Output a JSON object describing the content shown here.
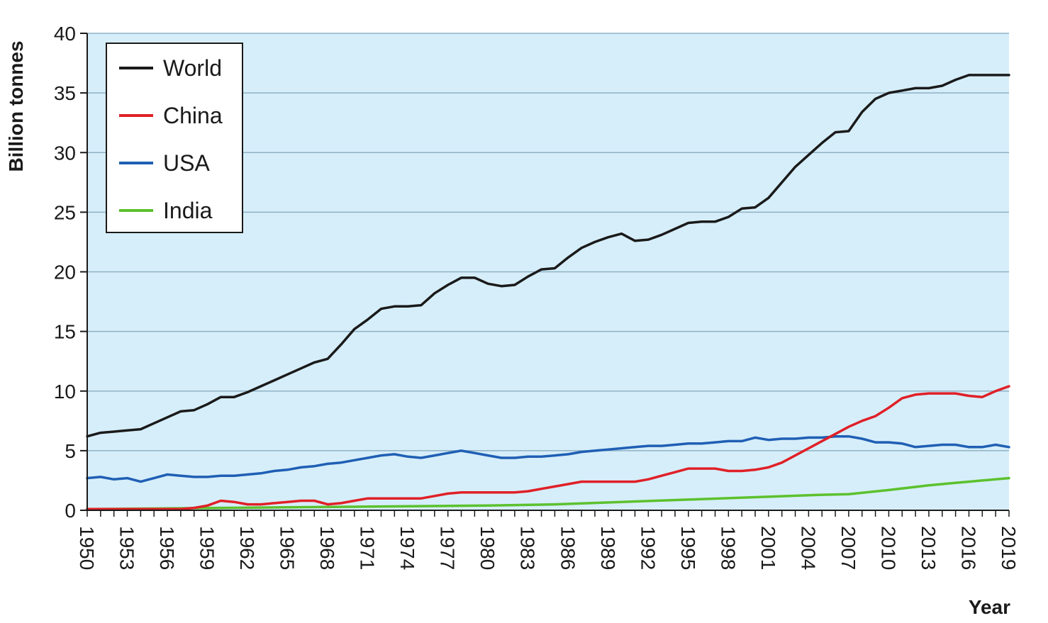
{
  "chart_data": {
    "type": "line",
    "title": "",
    "xlabel": "Year",
    "ylabel": "Billion tonnes",
    "xlim": [
      1950,
      2019
    ],
    "ylim": [
      0,
      40
    ],
    "yticks": [
      0,
      5,
      10,
      15,
      20,
      25,
      30,
      35,
      40
    ],
    "xtick_labels": [
      "1950",
      "1953",
      "1956",
      "1959",
      "1962",
      "1965",
      "1968",
      "1971",
      "1974",
      "1977",
      "1980",
      "1983",
      "1986",
      "1989",
      "1992",
      "1995",
      "1998",
      "2001",
      "2004",
      "2007",
      "2010",
      "2013",
      "2016",
      "2019"
    ],
    "grid": "horizontal",
    "legend_position": "top-left",
    "background_color": "#d6eefa",
    "series": [
      {
        "name": "World",
        "color": "#1a1a1a",
        "x": [
          1950,
          1951,
          1952,
          1953,
          1954,
          1955,
          1956,
          1957,
          1958,
          1959,
          1960,
          1961,
          1962,
          1963,
          1964,
          1965,
          1966,
          1967,
          1968,
          1969,
          1970,
          1971,
          1972,
          1973,
          1974,
          1975,
          1976,
          1977,
          1978,
          1979,
          1980,
          1981,
          1982,
          1983,
          1984,
          1985,
          1986,
          1987,
          1988,
          1989,
          1990,
          1991,
          1992,
          1993,
          1994,
          1995,
          1996,
          1997,
          1998,
          1999,
          2000,
          2001,
          2002,
          2003,
          2004,
          2005,
          2006,
          2007,
          2008,
          2009,
          2010,
          2011,
          2012,
          2013,
          2014,
          2015,
          2016,
          2017,
          2018,
          2019
        ],
        "values": [
          6.2,
          6.5,
          6.6,
          6.7,
          6.8,
          7.3,
          7.8,
          8.3,
          8.4,
          8.9,
          9.5,
          9.5,
          9.9,
          10.4,
          10.9,
          11.4,
          11.9,
          12.4,
          12.7,
          13.9,
          15.2,
          16.0,
          16.9,
          17.1,
          17.1,
          17.2,
          18.2,
          18.9,
          19.5,
          19.5,
          19.0,
          18.8,
          18.9,
          19.6,
          20.2,
          20.3,
          21.2,
          22.0,
          22.5,
          22.9,
          23.2,
          22.6,
          22.7,
          23.1,
          23.6,
          24.1,
          24.2,
          24.2,
          24.6,
          25.3,
          25.4,
          26.2,
          27.5,
          28.8,
          29.8,
          30.8,
          31.7,
          31.8,
          33.4,
          34.5,
          35.0,
          35.2,
          35.4,
          35.4,
          35.6,
          36.1,
          36.5,
          36.5,
          36.5,
          36.5
        ]
      },
      {
        "name": "China",
        "color": "#e02027",
        "x": [
          1950,
          1951,
          1952,
          1953,
          1954,
          1955,
          1956,
          1957,
          1958,
          1959,
          1960,
          1961,
          1962,
          1963,
          1964,
          1965,
          1966,
          1967,
          1968,
          1969,
          1970,
          1971,
          1972,
          1973,
          1974,
          1975,
          1976,
          1977,
          1978,
          1979,
          1980,
          1981,
          1982,
          1983,
          1984,
          1985,
          1986,
          1987,
          1988,
          1989,
          1990,
          1991,
          1992,
          1993,
          1994,
          1995,
          1996,
          1997,
          1998,
          1999,
          2000,
          2001,
          2002,
          2003,
          2004,
          2005,
          2006,
          2007,
          2008,
          2009,
          2010,
          2011,
          2012,
          2013,
          2014,
          2015,
          2016,
          2017,
          2018,
          2019
        ],
        "values": [
          0.1,
          0.1,
          0.1,
          0.1,
          0.1,
          0.1,
          0.1,
          0.1,
          0.2,
          0.4,
          0.8,
          0.7,
          0.5,
          0.5,
          0.6,
          0.7,
          0.8,
          0.8,
          0.5,
          0.6,
          0.8,
          1.0,
          1.0,
          1.0,
          1.0,
          1.0,
          1.2,
          1.4,
          1.5,
          1.5,
          1.5,
          1.5,
          1.5,
          1.6,
          1.8,
          2.0,
          2.2,
          2.4,
          2.4,
          2.4,
          2.4,
          2.4,
          2.6,
          2.9,
          3.2,
          3.5,
          3.5,
          3.5,
          3.3,
          3.3,
          3.4,
          3.6,
          4.0,
          4.6,
          5.2,
          5.8,
          6.4,
          7.0,
          7.5,
          7.9,
          8.6,
          9.4,
          9.7,
          9.8,
          9.8,
          9.8,
          9.6,
          9.5,
          10.0,
          10.4
        ]
      },
      {
        "name": "USA",
        "color": "#1f5fb4",
        "x": [
          1950,
          1951,
          1952,
          1953,
          1954,
          1955,
          1956,
          1957,
          1958,
          1959,
          1960,
          1961,
          1962,
          1963,
          1964,
          1965,
          1966,
          1967,
          1968,
          1969,
          1970,
          1971,
          1972,
          1973,
          1974,
          1975,
          1976,
          1977,
          1978,
          1979,
          1980,
          1981,
          1982,
          1983,
          1984,
          1985,
          1986,
          1987,
          1988,
          1989,
          1990,
          1991,
          1992,
          1993,
          1994,
          1995,
          1996,
          1997,
          1998,
          1999,
          2000,
          2001,
          2002,
          2003,
          2004,
          2005,
          2006,
          2007,
          2008,
          2009,
          2010,
          2011,
          2012,
          2013,
          2014,
          2015,
          2016,
          2017,
          2018,
          2019
        ],
        "values": [
          2.7,
          2.8,
          2.6,
          2.7,
          2.4,
          2.7,
          3.0,
          2.9,
          2.8,
          2.8,
          2.9,
          2.9,
          3.0,
          3.1,
          3.3,
          3.4,
          3.6,
          3.7,
          3.9,
          4.0,
          4.2,
          4.4,
          4.6,
          4.7,
          4.5,
          4.4,
          4.6,
          4.8,
          5.0,
          4.8,
          4.6,
          4.4,
          4.4,
          4.5,
          4.5,
          4.6,
          4.7,
          4.9,
          5.0,
          5.1,
          5.2,
          5.3,
          5.4,
          5.4,
          5.5,
          5.6,
          5.6,
          5.7,
          5.8,
          5.8,
          6.1,
          5.9,
          6.0,
          6.0,
          6.1,
          6.1,
          6.2,
          6.2,
          6.0,
          5.7,
          5.7,
          5.6,
          5.3,
          5.4,
          5.5,
          5.5,
          5.3,
          5.3,
          5.5,
          5.3
        ]
      },
      {
        "name": "India",
        "color": "#5cc12d",
        "x": [
          1950,
          1955,
          1960,
          1965,
          1970,
          1975,
          1980,
          1985,
          1990,
          1995,
          2000,
          2005,
          2007,
          2010,
          2013,
          2014,
          2015,
          2016,
          2017,
          2018,
          2019
        ],
        "values": [
          0.1,
          0.15,
          0.2,
          0.25,
          0.3,
          0.35,
          0.4,
          0.5,
          0.7,
          0.9,
          1.1,
          1.3,
          1.35,
          1.7,
          2.1,
          2.2,
          2.3,
          2.4,
          2.5,
          2.6,
          2.7
        ]
      }
    ]
  }
}
